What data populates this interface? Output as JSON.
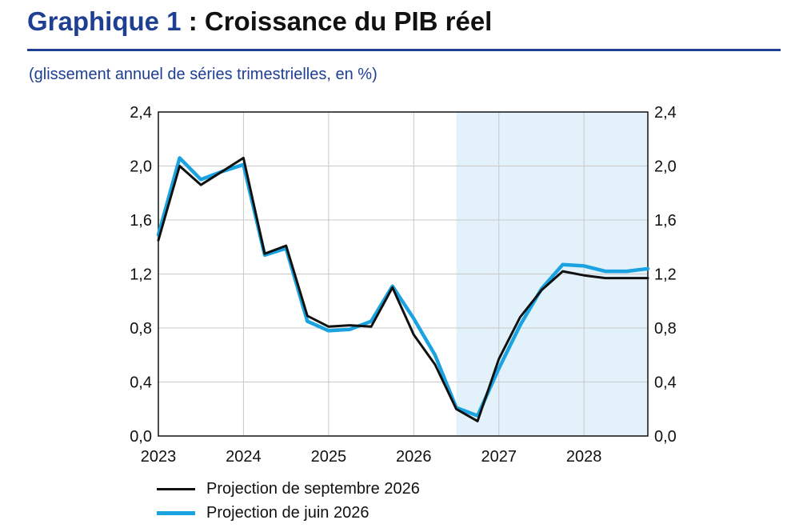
{
  "header": {
    "title_prefix": "Graphique 1",
    "title_rest": " : Croissance du PIB réel",
    "subtitle": "(glissement annuel de séries trimestrielles, en %)"
  },
  "colors": {
    "accent": "#1f3f93",
    "series_september": "#111111",
    "series_june": "#1aa3e0",
    "projection_band": "#e3f2fa"
  },
  "chart_data": {
    "type": "line",
    "title": "Croissance du PIB réel",
    "subtitle": "(glissement annuel de séries trimestrielles, en %)",
    "x": [
      2023.0,
      2023.25,
      2023.5,
      2023.75,
      2024.0,
      2024.25,
      2024.5,
      2024.75,
      2025.0,
      2025.25,
      2025.5,
      2025.75,
      2026.0,
      2026.25,
      2026.5,
      2026.75,
      2027.0,
      2027.25,
      2027.5,
      2027.75,
      2028.0,
      2028.25,
      2028.5,
      2028.75
    ],
    "xticks": [
      "2023",
      "2024",
      "2025",
      "2026",
      "2027",
      "2028"
    ],
    "xlim": [
      2023,
      2028.75
    ],
    "ylim": [
      0,
      2.4
    ],
    "yticks": [
      "0,0",
      "0,4",
      "0,8",
      "1,2",
      "1,6",
      "2,0",
      "2,4"
    ],
    "grid": true,
    "projection_shading_start": 2026.5,
    "series": [
      {
        "name": "Projection de septembre 2026",
        "values": [
          1.45,
          2.0,
          1.86,
          1.96,
          2.06,
          1.35,
          1.41,
          0.89,
          0.81,
          0.82,
          0.81,
          1.1,
          0.75,
          0.53,
          0.2,
          0.11,
          0.57,
          0.88,
          1.08,
          1.22,
          1.19,
          1.17,
          1.17,
          1.17
        ]
      },
      {
        "name": "Projection de juin 2026",
        "values": [
          1.49,
          2.06,
          1.9,
          1.96,
          2.01,
          1.34,
          1.39,
          0.85,
          0.78,
          0.79,
          0.85,
          1.11,
          0.87,
          0.6,
          0.21,
          0.15,
          0.5,
          0.82,
          1.09,
          1.27,
          1.26,
          1.22,
          1.22,
          1.24
        ]
      }
    ],
    "legend": [
      "Projection de septembre 2026",
      "Projection de juin 2026"
    ],
    "legend_position": "bottom-left"
  }
}
